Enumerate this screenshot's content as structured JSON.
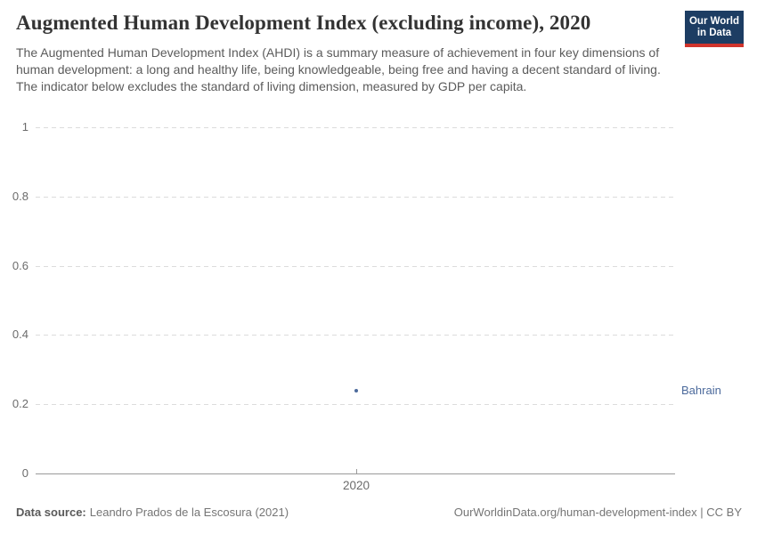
{
  "header": {
    "title": "Augmented Human Development Index (excluding income), 2020",
    "subtitle": "The Augmented Human Development Index (AHDI) is a summary measure of achievement in four key dimensions of human development: a long and healthy life, being knowledgeable, being free and having a decent standard of living. The indicator below excludes the standard of living dimension, measured by GDP per capita.",
    "logo": {
      "line1": "Our World",
      "line2": "in Data",
      "background_color": "#1d3d63",
      "stripe_color": "#d0342c"
    }
  },
  "chart_data": {
    "type": "scatter",
    "title": "Augmented Human Development Index (excluding income), 2020",
    "x": [
      2020
    ],
    "series": [
      {
        "name": "Bahrain",
        "values": [
          0.24
        ],
        "color": "#4C6A9C"
      }
    ],
    "xlabel": "",
    "ylabel": "",
    "ylim": [
      0,
      1
    ],
    "yticks": [
      0,
      0.2,
      0.4,
      0.6,
      0.8,
      1
    ],
    "xticks": [
      2020
    ],
    "grid": "horizontal dashed, solid zero axis",
    "legend": "entity label right of plot"
  },
  "footer": {
    "source_label": "Data source:",
    "source_value": "Leandro Prados de la Escosura (2021)",
    "attribution": "OurWorldinData.org/human-development-index | CC BY"
  }
}
